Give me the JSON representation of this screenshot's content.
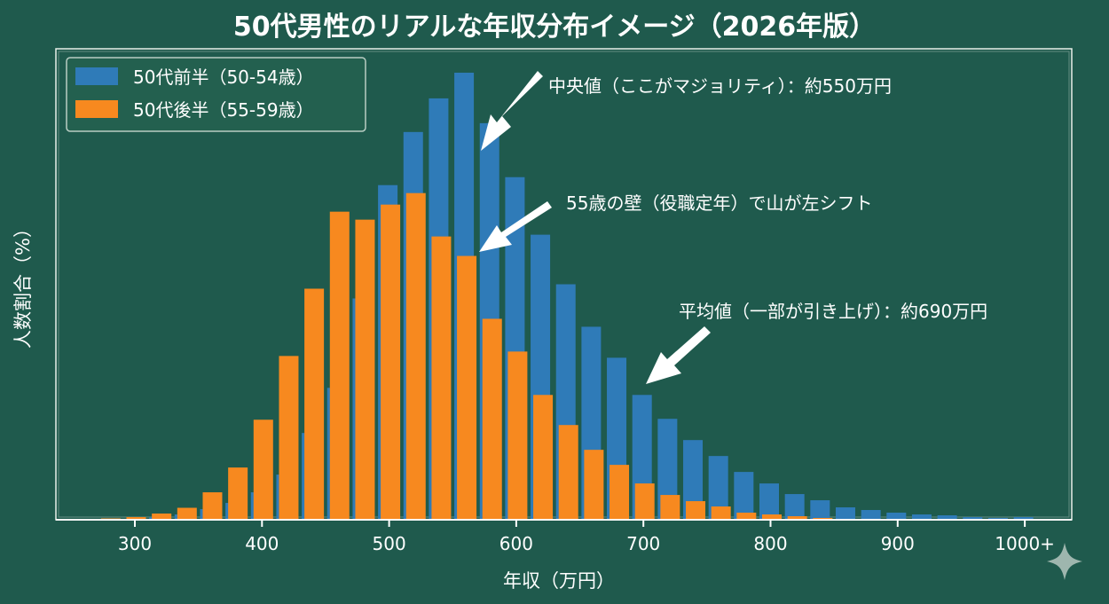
{
  "chart_data": {
    "type": "bar",
    "title": "50代男性のリアルな年収分布イメージ（2026年版）",
    "xlabel": "年収（万円）",
    "ylabel": "人数割合（%）",
    "x": [
      280,
      300,
      320,
      340,
      360,
      380,
      400,
      420,
      440,
      460,
      480,
      500,
      520,
      540,
      560,
      580,
      600,
      620,
      640,
      660,
      680,
      700,
      720,
      740,
      760,
      780,
      800,
      820,
      840,
      860,
      880,
      900,
      920,
      940,
      960,
      980,
      1000
    ],
    "xticks": [
      300,
      400,
      500,
      600,
      700,
      800,
      900,
      1000
    ],
    "xtick_labels": [
      "300",
      "400",
      "500",
      "600",
      "700",
      "800",
      "900",
      "1000+"
    ],
    "xlim": [
      265,
      1065
    ],
    "ylim": [
      0,
      10.5
    ],
    "grid": false,
    "legend_position": "top-left",
    "series": [
      {
        "name": "50代前半（50-54歳）",
        "color": "#2f7bb8",
        "values": [
          0.01,
          0.02,
          0.06,
          0.12,
          0.24,
          0.38,
          0.62,
          1.02,
          1.96,
          2.98,
          5.0,
          7.56,
          8.76,
          9.52,
          10.1,
          8.96,
          7.74,
          6.44,
          5.32,
          4.36,
          3.66,
          2.82,
          2.28,
          1.8,
          1.44,
          1.08,
          0.82,
          0.58,
          0.44,
          0.28,
          0.22,
          0.16,
          0.12,
          0.1,
          0.06,
          0.04,
          0.06
        ]
      },
      {
        "name": "50代後半（55-59歳）",
        "color": "#f7891f",
        "values": [
          0.03,
          0.06,
          0.14,
          0.27,
          0.62,
          1.18,
          2.26,
          3.7,
          5.22,
          6.96,
          6.78,
          7.12,
          7.38,
          6.4,
          5.96,
          4.54,
          3.8,
          2.82,
          2.14,
          1.58,
          1.24,
          0.82,
          0.56,
          0.42,
          0.3,
          0.16,
          0.12,
          0.08,
          0.04,
          0.02,
          0.01,
          0,
          0,
          0,
          0,
          0,
          0
        ]
      }
    ],
    "annotations": [
      {
        "text": "中央値（ここがマジョリティ）：約550万円",
        "x": 560
      },
      {
        "text": "55歳の壁（役職定年）で山が左シフト",
        "x": 560
      },
      {
        "text": "平均値（一部が引き上げ）：約690万円",
        "x": 700
      }
    ]
  },
  "colors": {
    "background": "#1f5a4d",
    "foreground": "#ffffff"
  },
  "watermark_icon": "sparkle-icon"
}
